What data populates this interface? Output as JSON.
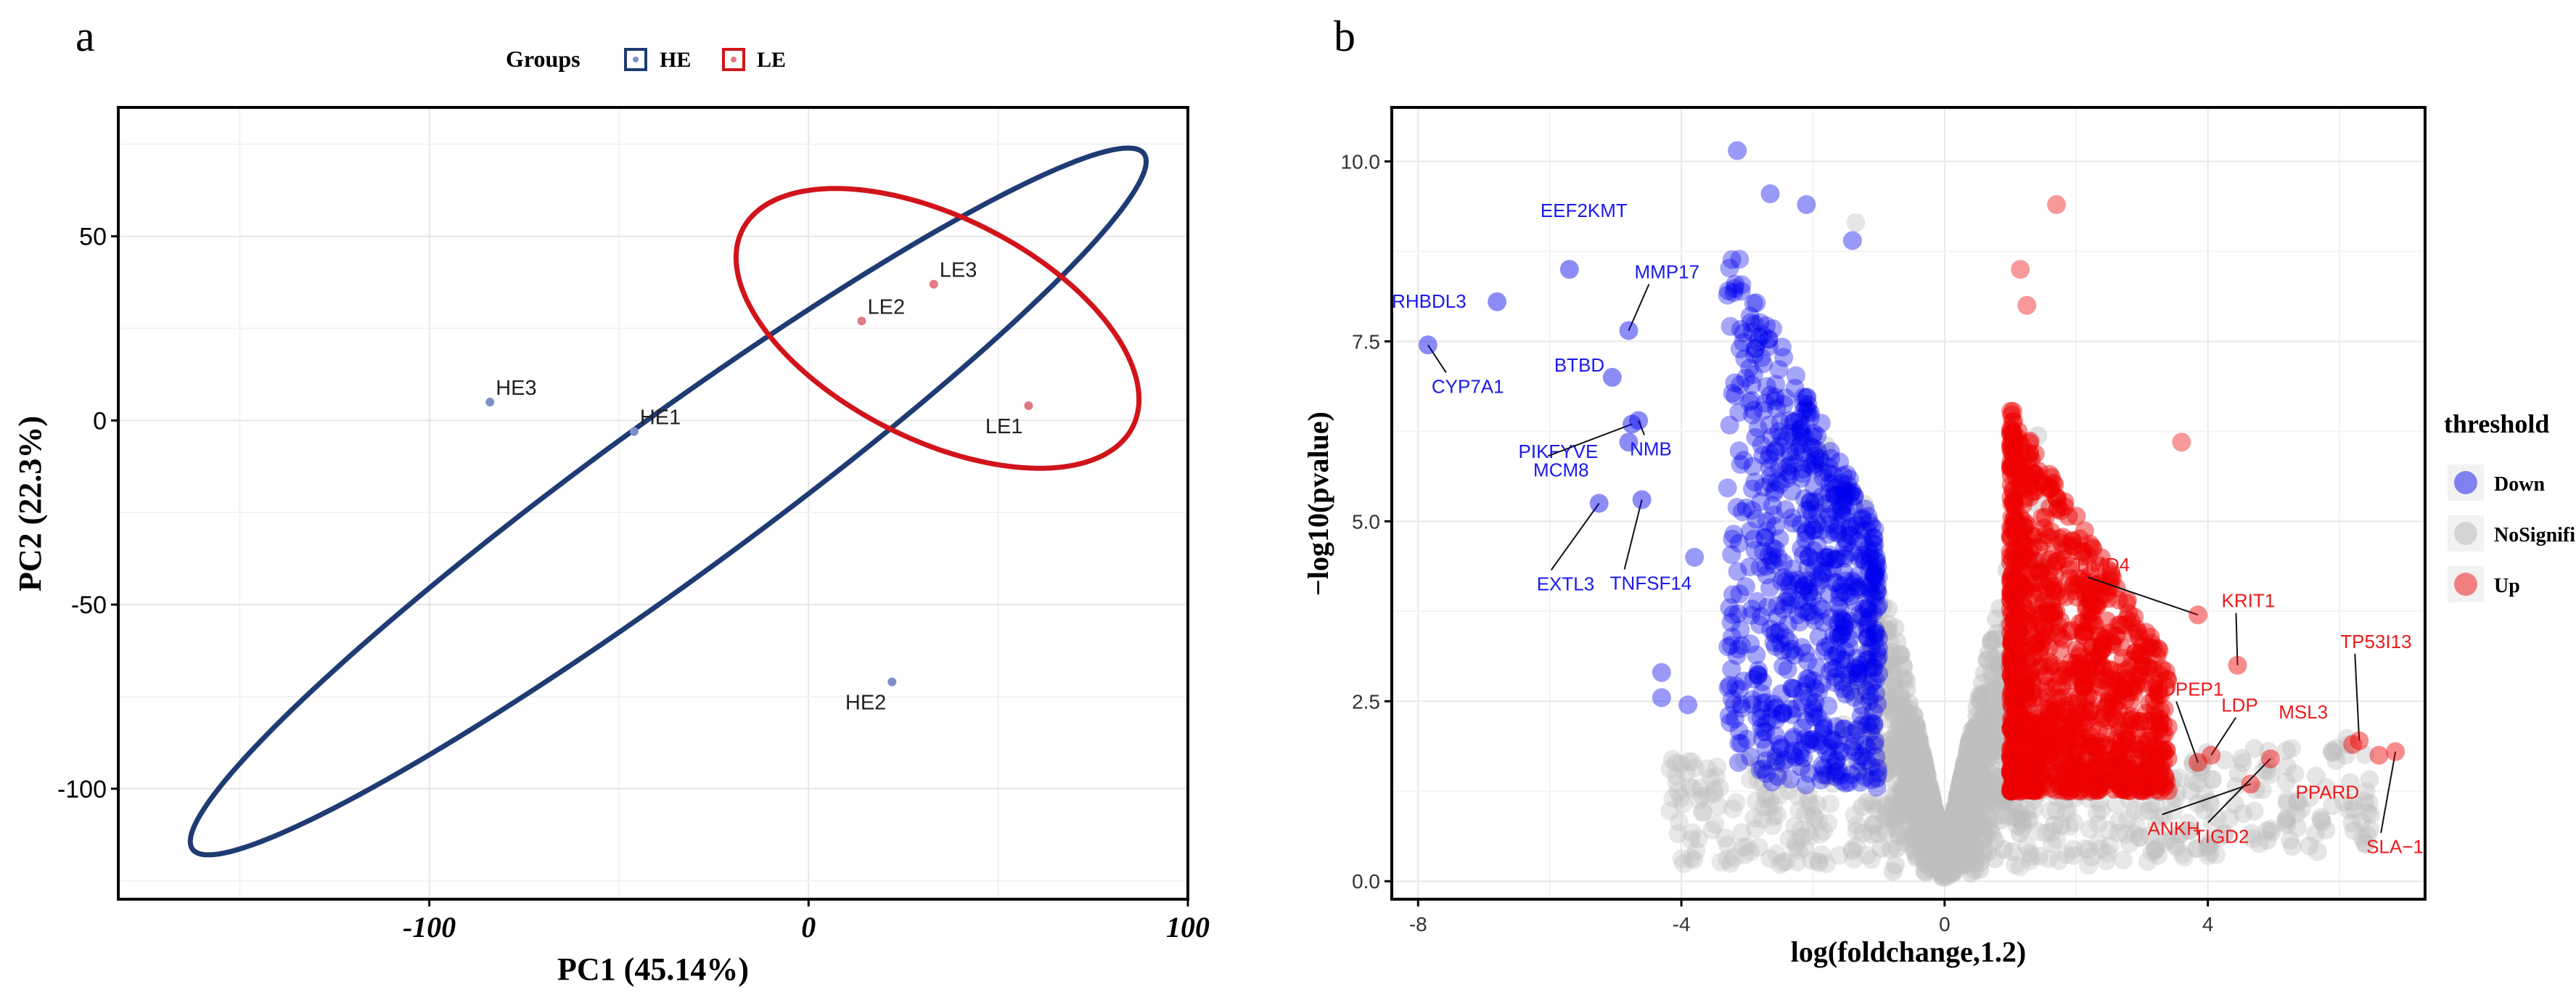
{
  "panels": {
    "a": {
      "letter": "a"
    },
    "b": {
      "letter": "b"
    }
  },
  "chart_data": [
    {
      "type": "scatter",
      "id": "pca",
      "title": "",
      "xlabel": "PC1 (45.14%)",
      "ylabel": "PC2 (22.3%)",
      "xlim": [
        -182,
        100
      ],
      "ylim": [
        -130,
        85
      ],
      "x_ticks": [
        -100,
        0,
        100
      ],
      "y_ticks": [
        50,
        0,
        -50,
        -100
      ],
      "x_tick_labels": [
        "-100",
        "0",
        "100"
      ],
      "y_tick_labels": [
        "50",
        "0",
        "-50",
        "-100"
      ],
      "grid": true,
      "legend": {
        "title": "Groups",
        "placement": "top-center",
        "entries": [
          {
            "label": "HE",
            "color": "#1f3b73"
          },
          {
            "label": "LE",
            "color": "#d1141b"
          }
        ]
      },
      "series": [
        {
          "name": "HE",
          "color": "#7b8fc7",
          "ellipse_color": "#1f3b73",
          "ellipse": {
            "center": [
              -37,
              -22
            ],
            "semi_axes": [
              157,
              21
            ],
            "angle_deg": 37
          },
          "points": [
            {
              "label": "HE3",
              "x": -84,
              "y": 5
            },
            {
              "label": "HE1",
              "x": -46,
              "y": -3
            },
            {
              "label": "HE2",
              "x": 22,
              "y": -71
            }
          ]
        },
        {
          "name": "LE",
          "color": "#e07b84",
          "ellipse_color": "#d1141b",
          "ellipse": {
            "center": [
              34,
              25
            ],
            "semi_axes": [
              58,
              30
            ],
            "angle_deg": -28
          },
          "points": [
            {
              "label": "LE3",
              "x": 33,
              "y": 37
            },
            {
              "label": "LE2",
              "x": 14,
              "y": 27
            },
            {
              "label": "LE1",
              "x": 58,
              "y": 4
            }
          ]
        }
      ]
    },
    {
      "type": "scatter",
      "id": "volcano",
      "title": "",
      "xlabel": "log(foldchange,1.2)",
      "ylabel": "−log10(pvalue)",
      "xlim": [
        -8.4,
        7.3
      ],
      "ylim": [
        -0.25,
        10.75
      ],
      "x_ticks": [
        -8,
        -4,
        0,
        4
      ],
      "y_ticks": [
        0,
        2.5,
        5,
        7.5,
        10
      ],
      "x_tick_labels": [
        "-8",
        "-4",
        "0",
        "4"
      ],
      "y_tick_labels": [
        "0.0",
        "2.5",
        "5.0",
        "7.5",
        "10.0"
      ],
      "grid": true,
      "legend": {
        "title": "threshold",
        "placement": "right",
        "entries": [
          {
            "label": "Down",
            "color": "#8080ee"
          },
          {
            "label": "NoSignifi",
            "color": "#d4d4d4"
          },
          {
            "label": "Up",
            "color": "#f08080"
          }
        ]
      },
      "colors": {
        "down": "#0000ee",
        "nosig": "#bebebe",
        "up": "#ee0000"
      },
      "cloud_summary": {
        "nosig_band_x": [
          -1.5,
          1.5
        ],
        "down_band_x": [
          -3.3,
          -1.0
        ],
        "up_band_x": [
          1.0,
          3.3
        ],
        "dense_y_range": [
          1.3,
          6.6
        ]
      },
      "highlighted": [
        {
          "x": -3.15,
          "y": 10.15,
          "group": "down"
        },
        {
          "x": -2.65,
          "y": 9.55,
          "group": "down"
        },
        {
          "x": -2.1,
          "y": 9.4,
          "group": "down"
        },
        {
          "x": -1.35,
          "y": 9.15,
          "group": "nosig"
        },
        {
          "x": -1.4,
          "y": 8.9,
          "group": "down"
        },
        {
          "x": 1.7,
          "y": 9.4,
          "group": "up"
        },
        {
          "x": 1.15,
          "y": 8.5,
          "group": "up"
        },
        {
          "x": 1.25,
          "y": 8.0,
          "group": "up"
        },
        {
          "x": 3.6,
          "y": 6.1,
          "group": "up"
        },
        {
          "x": -4.3,
          "y": 2.9,
          "group": "down"
        },
        {
          "x": -4.3,
          "y": 2.55,
          "group": "down"
        },
        {
          "x": -3.9,
          "y": 2.45,
          "group": "down"
        },
        {
          "x": -3.8,
          "y": 4.5,
          "group": "down"
        },
        {
          "x": 5.2,
          "y": 1.6,
          "group": "nosig"
        },
        {
          "x": 5.8,
          "y": 1.3,
          "group": "nosig"
        },
        {
          "x": 6.2,
          "y": 1.1,
          "group": "nosig"
        },
        {
          "x": 4.9,
          "y": 0.7,
          "group": "nosig"
        }
      ],
      "labeled_genes": [
        {
          "label": "EEF2KMT",
          "x": -5.7,
          "y": 8.5,
          "group": "down"
        },
        {
          "label": "RHBDL3",
          "x": -6.8,
          "y": 8.05,
          "group": "down"
        },
        {
          "label": "CYP7A1",
          "x": -7.85,
          "y": 7.45,
          "group": "down"
        },
        {
          "label": "MMP17",
          "x": -4.8,
          "y": 7.65,
          "group": "down"
        },
        {
          "label": "BTBD",
          "x": -5.05,
          "y": 7.0,
          "group": "down"
        },
        {
          "label": "PIKFYVE",
          "x": -4.8,
          "y": 6.1,
          "group": "down"
        },
        {
          "label": "MCM8",
          "x": -4.75,
          "y": 6.35,
          "group": "down"
        },
        {
          "label": "NMB",
          "x": -4.65,
          "y": 6.4,
          "group": "down"
        },
        {
          "label": "EXTL3",
          "x": -5.25,
          "y": 5.25,
          "group": "down"
        },
        {
          "label": "TNFSF14",
          "x": -4.6,
          "y": 5.3,
          "group": "down"
        },
        {
          "label": "TIMD4",
          "x": 3.85,
          "y": 3.7,
          "group": "up"
        },
        {
          "label": "KRIT1",
          "x": 4.45,
          "y": 3.0,
          "group": "up"
        },
        {
          "label": "TP53I13",
          "x": 6.3,
          "y": 1.95,
          "group": "up"
        },
        {
          "label": "DPEP1",
          "x": 3.85,
          "y": 1.65,
          "group": "up"
        },
        {
          "label": "LDP",
          "x": 4.05,
          "y": 1.75,
          "group": "up"
        },
        {
          "label": "MSL3",
          "x": 6.2,
          "y": 1.9,
          "group": "up"
        },
        {
          "label": "PPARD",
          "x": 6.6,
          "y": 1.75,
          "group": "up"
        },
        {
          "label": "ANKH",
          "x": 4.65,
          "y": 1.35,
          "group": "up"
        },
        {
          "label": "TIGD2",
          "x": 4.95,
          "y": 1.7,
          "group": "up"
        },
        {
          "label": "SLA−1",
          "x": 6.85,
          "y": 1.8,
          "group": "up"
        }
      ]
    }
  ]
}
